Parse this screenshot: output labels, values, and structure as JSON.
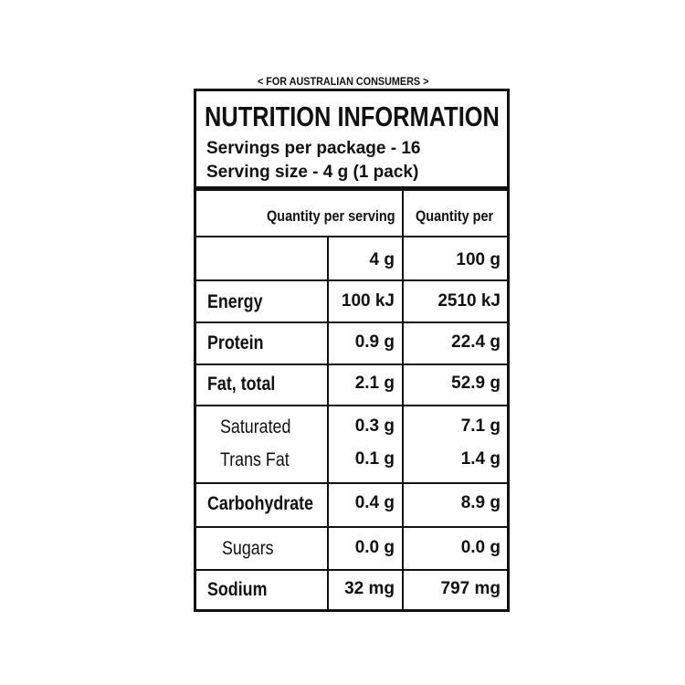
{
  "header_note": "< FOR AUSTRALIAN CONSUMERS >",
  "title": "NUTRITION INFORMATION",
  "servings_per_package": "Servings per package - 16",
  "serving_size": "Serving size - 4 g (1 pack)",
  "column_headers": [
    "Quantity per serving",
    "Quantity per"
  ],
  "units_row": [
    "4 g",
    "100 g"
  ],
  "rows": [
    [
      "Energy",
      "100 kJ",
      "2510 kJ"
    ],
    [
      "Protein",
      "0.9 g",
      "22.4 g"
    ],
    [
      "Fat, total",
      "2.1 g",
      "52.9 g"
    ],
    [
      "Saturated",
      "0.3 g",
      "7.1 g"
    ],
    [
      "Trans Fat",
      "0.1 g",
      "1.4 g"
    ],
    [
      "Carbohydrate",
      "0.4 g",
      "8.9 g"
    ],
    [
      "Sugars",
      "0.0 g",
      "0.0 g"
    ],
    [
      "Sodium",
      "32 mg",
      "797 mg"
    ]
  ]
}
